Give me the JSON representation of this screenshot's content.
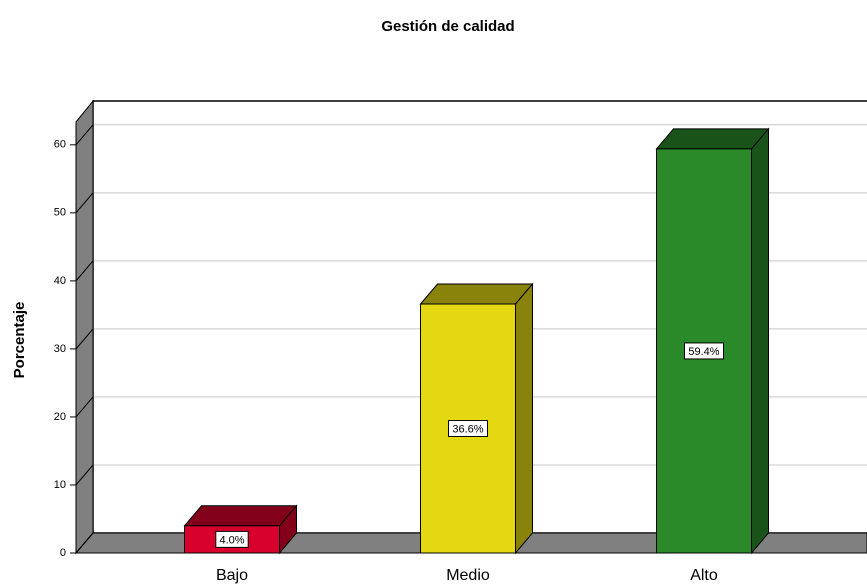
{
  "chart_data": {
    "type": "bar",
    "title": "Gestión de calidad",
    "ylabel": "Porcentaje",
    "categories": [
      "Bajo",
      "Medio",
      "Alto"
    ],
    "values": [
      4.0,
      36.6,
      59.4
    ],
    "value_labels": [
      "4.0%",
      "36.6%",
      "59.4%"
    ],
    "colors": [
      "#d8002c",
      "#e4d812",
      "#2a8a2a"
    ],
    "ylim": [
      0,
      63.5
    ],
    "yticks": [
      0,
      10,
      20,
      30,
      40,
      50,
      60
    ],
    "grid": true
  }
}
